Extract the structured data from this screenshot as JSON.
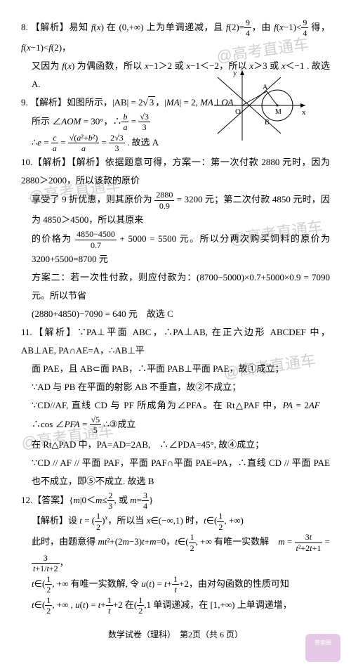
{
  "q8": {
    "head": "8. 【解析】易知 <i>f</i>(<i>x</i>) 在 (0,+∞) 上为单调递减，且 <i>f</i>(2)=",
    "frac1_num": "9",
    "frac1_den": "4",
    "mid1": "，由 <i>f</i>(<i>x</i>−1)&lt;",
    "mid2": " 得，<i>f</i>(<i>x</i>−1)&lt;<i>f</i>(2)，",
    "line2": "又因为 <i>f</i>(<i>x</i>) 为偶函数，所以 <i>x</i>−1＞2 或 <i>x</i>−1＜−2，所以 <i>x</i>＞3 或 <i>x</i>＜−1 . 故选 A."
  },
  "q9": {
    "head": "9. 【解析】如图所示，|AB| = 2",
    "sqrt1": "3",
    "mid": "，|<i>MA</i>| = 2, <i>MA</i>⊥<i>OA</i>",
    "line2a": "所示 ∠<i>AOM</i> = 30°，∴",
    "frac_ba_n": "<i>b</i>",
    "frac_ba_d": "<i>a</i>",
    "eq": " = ",
    "frac_s3_n": "√3",
    "frac_s3_d": "3",
    "line3a": "∴<i>e</i> = ",
    "frac_c_n": "<i>c</i>",
    "frac_c_d": "<i>a</i>",
    "eq2": " = ",
    "frac_ab_n": "√(<i>a</i>²+<i>b</i>²)",
    "frac_ab_d": "<i>a</i>",
    "eq3": " = ",
    "frac_r_n": "2√3",
    "frac_r_d": "3",
    "tail": " . 故选 A"
  },
  "q10": {
    "head": "10.【解析】【解析】依据题意可得，方案一：第一次付款 2880 元时，因为 2880＞2000，所以该款的原价",
    "line2": "享受了 9 折优惠，则其原价为 ",
    "frac_n": "2880",
    "frac_d": "0.9",
    "mid": " = 3200 元；第二次付款 4850 元时，因为 4850＞4500，所以其原来",
    "line3a": "的价格为 ",
    "frac2_n": "4850−4500",
    "frac2_d": "0.7",
    "line3b": " + 5000 = 5500 元。所以分两次购买饲料的原价为 3200+5500=8700 元",
    "line4": "方案二：若一次性付款，则应付款为：(8700−5000)×0.7+5000×0.9 = 7090 元。所以节省",
    "line5": "(2880+4850)−7090 = 640 元　故选 C"
  },
  "q11": {
    "head": "11.【解析】∵PA⊥平面 ABC，∴PA⊥AB, 在正六边形 ABCDEF 中，AB⊥AE, PA∩AE=A，∴AB⊥平",
    "line2": "面 PAE，且 AB⊂面 PAB，∴平面 PAB⊥平面 PAE，故①成立；",
    "line3": "∵AD 与 PB 在平面的射影 AB 不垂直，故②不成立；",
    "line4a": "∵CD//AF, 直线 CD 与 PF 所成角为∠PFA。在 Rt△PAF 中，<i>PA</i> = 2<i>AF</i>　∴cos ∠<i>PFA</i> = ",
    "frac_n": "√5",
    "frac_d": "5",
    "line4b": " ∴③成立",
    "line5": "在 Rt△PAD 中，PA=AD=2AB,　∴∠PDA=45°, 故④成立；",
    "line6": "∵CD // AF // 平面 PAF，平面 PAF∩平面 PAE=PA，∴直线 CD // 平面 PAE 也不成立，即⑤不成立. 故选 B"
  },
  "q12": {
    "head": "12.【答案】{<i>m</i>|0＜<i>m</i>≤",
    "frac1_n": "2",
    "frac1_d": "3",
    "mid1": ", 或 <i>m</i>=",
    "frac2_n": "3",
    "frac2_d": "4",
    "tail1": "}",
    "line2a": "【解析】设 <i>t</i> = ",
    "frac_t_n": "1",
    "frac_t_d": "2",
    "line2b": "<sup><i>x</i></sup>，所以当 <i>x</i>∈(−∞,1) 时，<i>t</i>∈",
    "frac_h_n": "1",
    "frac_h_d": "2",
    "line2c": ", +∞",
    "line3a": "此时，由题意得 <i>mt</i>²+(2<i>m</i>−3)<i>t</i>+<i>m</i>=0，<i>t</i>∈",
    "line3b": ", +∞  有唯一实数解　<i>m</i> = ",
    "frac_m_n": "3<i>t</i>",
    "frac_m_d": "<i>t</i>²+2<i>t</i>+1",
    "eq": " = ",
    "frac_r_n": "3",
    "frac_r_d": "<i>t</i>+1/<i>t</i>+2",
    "tail3": "，",
    "line4a": "<i>t</i>∈",
    "line4b": ", +∞  有唯一实数解, 令 <i>u</i>(<i>t</i>) = <i>t</i>+",
    "frac_u_n": "1",
    "frac_u_d": "<i>t</i>",
    "line4c": "+2，由对勾函数的性质可知",
    "line5a": "<i>t</i>∈",
    "line5b": ", +∞ , <i>u</i>(<i>t</i>) = <i>t</i>+",
    "line5c": "+2 在",
    "line5d": ",1  单调递减，在 [1,+∞) 上单调递增，"
  },
  "footer": {
    "text": "数学试卷（理科）　第2页（共 6 页）"
  },
  "watermarks": {
    "w1": "@高考直通车",
    "w2": "@高考直通车",
    "w3": "@高考直通车",
    "w4": "@高考直通车",
    "w5": "@高考直通车"
  },
  "stamp": {
    "text": "普索圈"
  },
  "diagram": {
    "colors": {
      "stroke": "#000",
      "fill": "none"
    }
  }
}
